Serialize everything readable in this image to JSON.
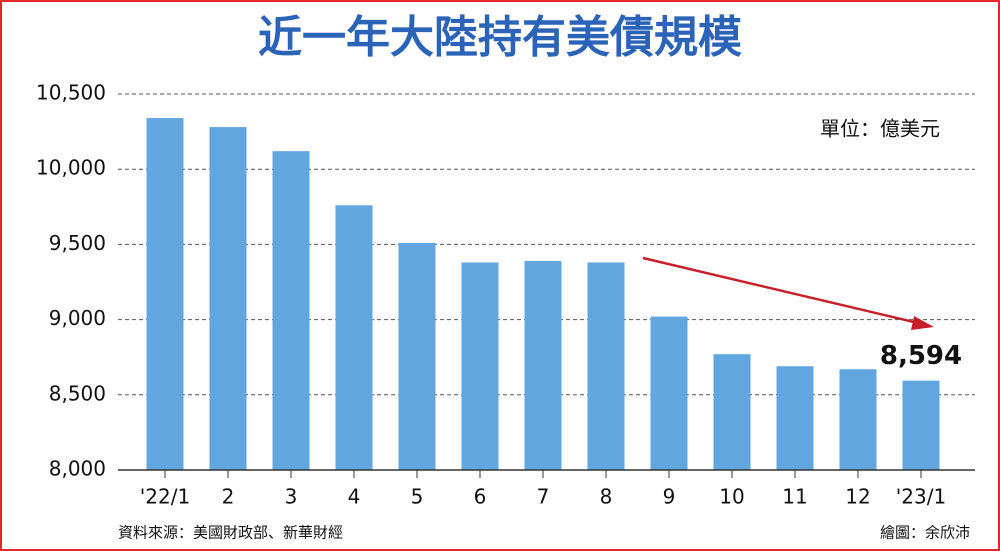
{
  "chart_data": {
    "type": "bar",
    "title": "近一年大陸持有美債規模",
    "unit_note": "單位：億美元",
    "source": "資料來源：美國財政部、新華財經",
    "credit": "繪圖：余欣沛",
    "categories": [
      "'22/1",
      "2",
      "3",
      "4",
      "5",
      "6",
      "7",
      "8",
      "9",
      "10",
      "11",
      "12",
      "'23/1"
    ],
    "values": [
      10340,
      10280,
      10120,
      9760,
      9510,
      9380,
      9390,
      9380,
      9020,
      8770,
      8690,
      8670,
      8594
    ],
    "value_labels": [
      null,
      null,
      null,
      null,
      null,
      null,
      null,
      null,
      null,
      null,
      null,
      null,
      "8,594"
    ],
    "color": "#62a6e0",
    "ylim": [
      8000,
      10500
    ],
    "yticks": [
      {
        "value": 8000,
        "label": "8,000"
      },
      {
        "value": 8500,
        "label": "8,500"
      },
      {
        "value": 9000,
        "label": "9,000"
      },
      {
        "value": 9500,
        "label": "9,500"
      },
      {
        "value": 10000,
        "label": "10,000"
      },
      {
        "value": 10500,
        "label": "10,500"
      }
    ],
    "grid": true
  }
}
